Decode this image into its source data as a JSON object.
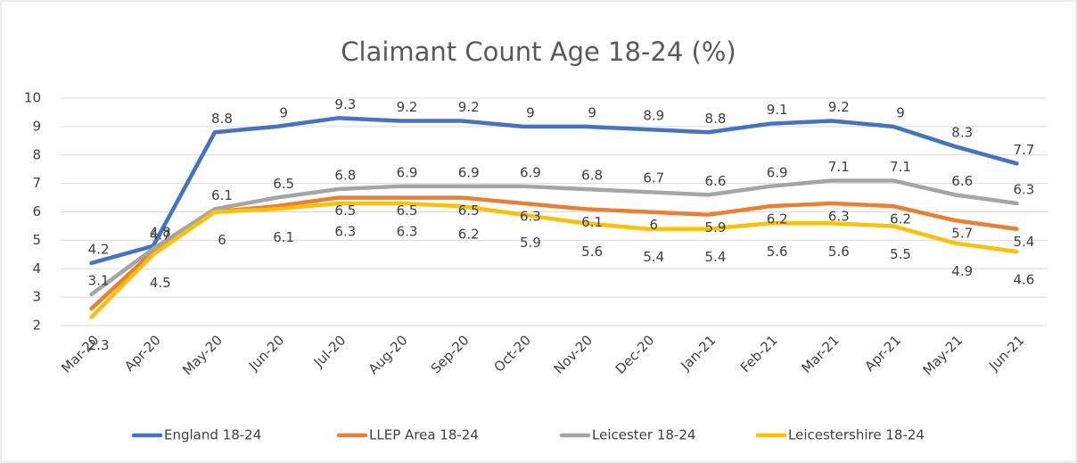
{
  "chart_data": {
    "type": "line",
    "title": "Claimant Count Age 18-24 (%)",
    "categories": [
      "Mar-20",
      "Apr-20",
      "May-20",
      "Jun-20",
      "Jul-20",
      "Aug-20",
      "Sep-20",
      "Oct-20",
      "Nov-20",
      "Dec-20",
      "Jan-21",
      "Feb-21",
      "Mar-21",
      "Apr-21",
      "May-21",
      "Jun-21"
    ],
    "series": [
      {
        "name": "England 18-24",
        "color": "#4472c4",
        "values": [
          4.2,
          4.8,
          8.8,
          9,
          9.3,
          9.2,
          9.2,
          9,
          9,
          8.9,
          8.8,
          9.1,
          9.2,
          9,
          8.3,
          7.7
        ]
      },
      {
        "name": "LLEP Area 18-24",
        "color": "#ed7d31",
        "values": [
          2.6,
          4.6,
          6,
          6.2,
          6.5,
          6.5,
          6.5,
          6.3,
          6.1,
          6,
          5.9,
          6.2,
          6.3,
          6.2,
          5.7,
          5.4
        ],
        "value_labels": [
          null,
          null,
          null,
          null,
          "6.5",
          "6.5",
          "6.5",
          "6.3",
          "6.1",
          "6",
          "5.9",
          "6.2",
          "6.3",
          "6.2",
          "5.7",
          "5.4"
        ]
      },
      {
        "name": "Leicester 18-24",
        "color": "#a5a5a5",
        "values": [
          3.1,
          4.7,
          6.1,
          6.5,
          6.8,
          6.9,
          6.9,
          6.9,
          6.8,
          6.7,
          6.6,
          6.9,
          7.1,
          7.1,
          6.6,
          6.3
        ]
      },
      {
        "name": "Leicestershire 18-24",
        "color": "#ffc000",
        "values": [
          2.3,
          4.5,
          6,
          6.1,
          6.3,
          6.3,
          6.2,
          5.9,
          5.6,
          5.4,
          5.4,
          5.6,
          5.6,
          5.5,
          4.9,
          4.6
        ]
      }
    ],
    "ylim": [
      2,
      10
    ],
    "yticks": [
      2,
      3,
      4,
      5,
      6,
      7,
      8,
      9,
      10
    ],
    "grid": true,
    "legend": "bottom"
  }
}
